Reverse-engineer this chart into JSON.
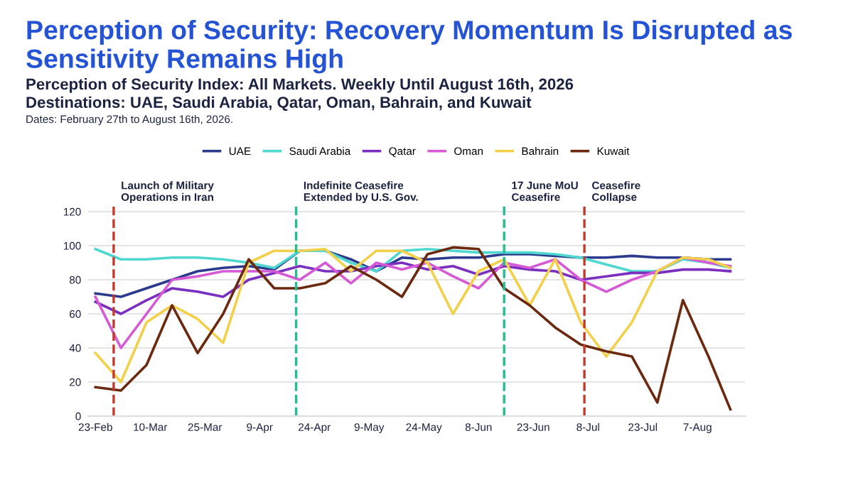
{
  "chart_data": {
    "type": "line",
    "title": "Perception of Security: Recovery Momentum Is Disrupted as Sensitivity Remains High",
    "subtitle": "Perception of Security Index: All Markets. Weekly Until August 16th, 2026\nDestinations: UAE, Saudi Arabia, Qatar, Oman, Bahrain, and Kuwait",
    "annotations": [
      "Dates: February 27th to August 16th, 2026."
    ],
    "x": [
      "2026-02-23",
      "2026-03-02",
      "2026-03-09",
      "2026-03-16",
      "2026-03-23",
      "2026-03-30",
      "2026-04-06",
      "2026-04-13",
      "2026-04-20",
      "2026-04-27",
      "2026-05-04",
      "2026-05-11",
      "2026-05-18",
      "2026-05-25",
      "2026-06-01",
      "2026-06-08",
      "2026-06-15",
      "2026-06-22",
      "2026-06-29",
      "2026-07-06",
      "2026-07-13",
      "2026-07-20",
      "2026-07-27",
      "2026-08-03",
      "2026-08-10",
      "2026-08-16"
    ],
    "series": [
      {
        "name": "UAE",
        "color": "#2b3a8c",
        "values": [
          72,
          70,
          75,
          80,
          85,
          87,
          88,
          86,
          97,
          97,
          92,
          85,
          93,
          92,
          93,
          93,
          95,
          95,
          94,
          93,
          93,
          94,
          93,
          93,
          92,
          92
        ]
      },
      {
        "name": "Saudi Arabia",
        "color": "#4fd8d0",
        "values": [
          98,
          92,
          92,
          93,
          93,
          92,
          90,
          87,
          97,
          97,
          90,
          85,
          97,
          98,
          97,
          96,
          96,
          96,
          95,
          93,
          89,
          85,
          85,
          92,
          90,
          87
        ]
      },
      {
        "name": "Qatar",
        "color": "#7b2fbf",
        "values": [
          67,
          60,
          68,
          75,
          73,
          70,
          80,
          84,
          88,
          85,
          85,
          88,
          90,
          86,
          88,
          83,
          88,
          86,
          85,
          80,
          82,
          84,
          84,
          86,
          86,
          85
        ]
      },
      {
        "name": "Oman",
        "color": "#d65ad6",
        "values": [
          70,
          40,
          60,
          80,
          82,
          85,
          85,
          85,
          80,
          90,
          78,
          90,
          86,
          90,
          82,
          75,
          90,
          87,
          92,
          80,
          73,
          80,
          85,
          93,
          90,
          88
        ]
      },
      {
        "name": "Bahrain",
        "color": "#f2d04a",
        "values": [
          37,
          20,
          55,
          65,
          57,
          43,
          90,
          97,
          97,
          98,
          85,
          97,
          97,
          90,
          60,
          85,
          92,
          65,
          92,
          55,
          35,
          55,
          85,
          93,
          92,
          87
        ]
      },
      {
        "name": "Kuwait",
        "color": "#6b2a10",
        "values": [
          17,
          15,
          30,
          65,
          37,
          60,
          92,
          75,
          75,
          78,
          88,
          80,
          70,
          95,
          99,
          98,
          75,
          65,
          52,
          42,
          38,
          35,
          8,
          68,
          35,
          4
        ]
      }
    ],
    "xlim": [
      "2026-02-21",
      "2026-08-20"
    ],
    "xticks": [
      {
        "value": "2026-02-23",
        "label": "23-Feb"
      },
      {
        "value": "2026-03-10",
        "label": "10-Mar"
      },
      {
        "value": "2026-03-25",
        "label": "25-Mar"
      },
      {
        "value": "2026-04-09",
        "label": "9-Apr"
      },
      {
        "value": "2026-04-24",
        "label": "24-Apr"
      },
      {
        "value": "2026-05-09",
        "label": "9-May"
      },
      {
        "value": "2026-05-24",
        "label": "24-May"
      },
      {
        "value": "2026-06-08",
        "label": "8-Jun"
      },
      {
        "value": "2026-06-23",
        "label": "23-Jun"
      },
      {
        "value": "2026-07-08",
        "label": "8-Jul"
      },
      {
        "value": "2026-07-23",
        "label": "23-Jul"
      },
      {
        "value": "2026-08-07",
        "label": "7-Aug"
      }
    ],
    "ylim": [
      0,
      125
    ],
    "yticks": [
      0,
      20,
      40,
      60,
      80,
      100,
      120
    ],
    "ref_lines": [
      {
        "axis": "x",
        "value": "2026-02-28",
        "label": "Launch of Military\nOperations in Iran",
        "color": "#c0392b",
        "line_style": "dashed"
      },
      {
        "axis": "x",
        "value": "2026-04-19",
        "label": "Indefinite Ceasefire\nExtended by U.S. Gov.",
        "color": "#1fbf8f",
        "line_style": "dashed"
      },
      {
        "axis": "x",
        "value": "2026-06-15",
        "label": "17 June MoU\nCeasefire",
        "color": "#1fbf8f",
        "line_style": "dashed"
      },
      {
        "axis": "x",
        "value": "2026-07-07",
        "label": "Ceasefire\nCollapse",
        "color": "#c0392b",
        "line_style": "dashed"
      }
    ],
    "grid": "y",
    "legend": "top",
    "line_style": "solid",
    "marker": "none"
  }
}
